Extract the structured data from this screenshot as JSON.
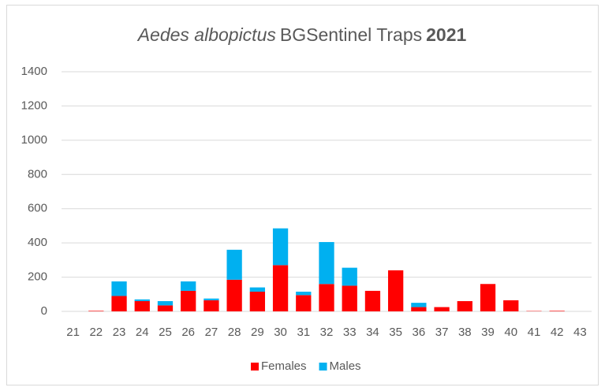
{
  "chart_data": {
    "type": "stacked-bar",
    "title_parts": [
      {
        "text": "Aedes albopictus",
        "font_style": "italic",
        "font_weight": "normal"
      },
      {
        "text": "BGSentinel Traps",
        "font_style": "normal",
        "font_weight": "normal"
      },
      {
        "text": "2021",
        "font_style": "normal",
        "font_weight": "bold"
      }
    ],
    "categories": [
      "21",
      "22",
      "23",
      "24",
      "25",
      "26",
      "27",
      "28",
      "29",
      "30",
      "31",
      "32",
      "33",
      "34",
      "35",
      "36",
      "37",
      "38",
      "39",
      "40",
      "41",
      "42",
      "43"
    ],
    "series": [
      {
        "name": "Females",
        "color": "#ff0000",
        "values": [
          0,
          3,
          90,
          60,
          35,
          120,
          65,
          185,
          115,
          270,
          95,
          160,
          150,
          120,
          240,
          25,
          25,
          60,
          160,
          65,
          2,
          3,
          0
        ]
      },
      {
        "name": "Males",
        "color": "#00b0f0",
        "values": [
          0,
          0,
          85,
          10,
          25,
          55,
          10,
          175,
          25,
          215,
          20,
          245,
          105,
          0,
          0,
          25,
          0,
          0,
          0,
          0,
          0,
          0,
          0
        ]
      }
    ],
    "ylim": [
      0,
      1400
    ],
    "yticks": [
      0,
      200,
      400,
      600,
      800,
      1000,
      1200,
      1400
    ],
    "grid": true,
    "legend": "bottom"
  }
}
